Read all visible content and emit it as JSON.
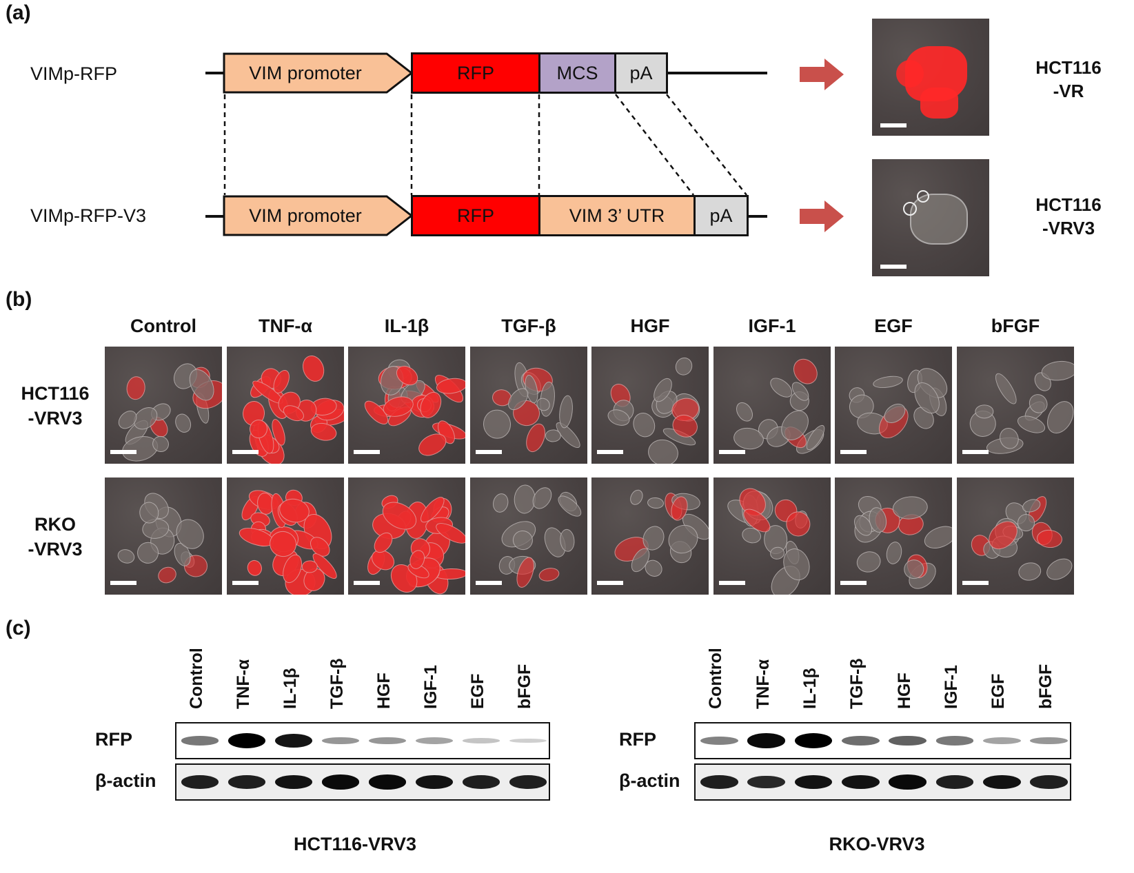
{
  "panels": {
    "a": "(a)",
    "b": "(b)",
    "c": "(c)"
  },
  "panel_a": {
    "constructs": [
      {
        "name": "VIMp-RFP",
        "elements": [
          "VIM promoter",
          "RFP",
          "MCS",
          "pA"
        ],
        "cell_line": "HCT116\n-VR"
      },
      {
        "name": "VIMp-RFP-V3",
        "elements": [
          "VIM promoter",
          "RFP",
          "VIM 3’ UTR",
          "pA"
        ],
        "cell_line": "HCT116\n-VRV3"
      }
    ],
    "colors": {
      "promoter": "#f9c197",
      "rfp": "#ff0000",
      "mcs": "#b3a2c8",
      "pa": "#d9d9d9",
      "utr": "#f9c197",
      "arrow": "#c9504b"
    }
  },
  "panel_b": {
    "treatments": [
      "Control",
      "TNF-α",
      "IL-1β",
      "TGF-β",
      "HGF",
      "IGF-1",
      "EGF",
      "bFGF"
    ],
    "rows": [
      {
        "label": "HCT116\n-VRV3",
        "red_intensity": [
          0.3,
          0.9,
          0.8,
          0.25,
          0.2,
          0.15,
          0.1,
          0.05
        ]
      },
      {
        "label": "RKO\n-VRV3",
        "red_intensity": [
          0.15,
          1.0,
          0.95,
          0.2,
          0.15,
          0.35,
          0.3,
          0.3
        ]
      }
    ]
  },
  "panel_c": {
    "lanes": [
      "Control",
      "TNF-α",
      "IL-1β",
      "TGF-β",
      "HGF",
      "IGF-1",
      "EGF",
      "bFGF"
    ],
    "blots": [
      {
        "title": "HCT116-VRV3",
        "rows": [
          "RFP",
          "β-actin"
        ],
        "rfp_intensity": [
          0.45,
          1.0,
          0.9,
          0.3,
          0.3,
          0.25,
          0.1,
          0.05
        ],
        "actin_intensity": [
          0.85,
          0.85,
          0.9,
          0.95,
          0.95,
          0.9,
          0.85,
          0.85
        ]
      },
      {
        "title": "RKO-VRV3",
        "rows": [
          "RFP",
          "β-actin"
        ],
        "rfp_intensity": [
          0.4,
          0.95,
          1.0,
          0.5,
          0.55,
          0.45,
          0.25,
          0.3
        ],
        "actin_intensity": [
          0.85,
          0.8,
          0.9,
          0.9,
          0.95,
          0.85,
          0.9,
          0.85
        ]
      }
    ]
  }
}
